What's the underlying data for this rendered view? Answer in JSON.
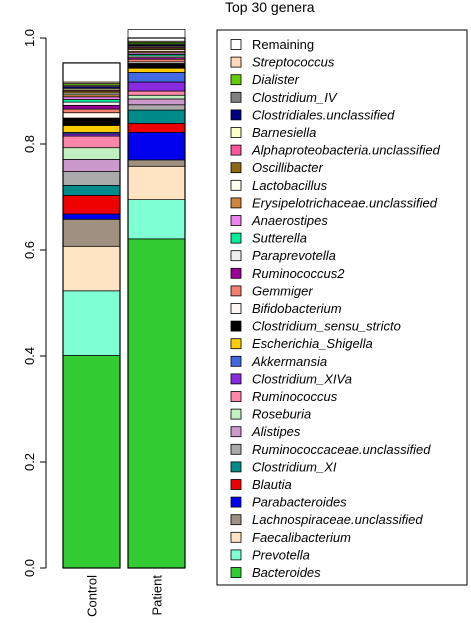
{
  "chart_data": {
    "type": "bar",
    "stacked": true,
    "title": "Top 30 genera",
    "xlabel": "",
    "ylabel": "",
    "ylim": [
      0,
      1
    ],
    "yticks": [
      "0.0",
      "0.2",
      "0.4",
      "0.6",
      "0.8",
      "1.0"
    ],
    "categories": [
      "Control",
      "Patient"
    ],
    "legend_position": "right",
    "grid": false,
    "series": [
      {
        "name": "Bacteroides",
        "color": "#33cc33",
        "values": [
          0.401,
          0.621
        ]
      },
      {
        "name": "Prevotella",
        "color": "#7fffd4",
        "values": [
          0.122,
          0.074
        ]
      },
      {
        "name": "Faecalibacterium",
        "color": "#ffe4c4",
        "values": [
          0.084,
          0.063
        ]
      },
      {
        "name": "Lachnospiraceae.unclassified",
        "color": "#a09080",
        "values": [
          0.051,
          0.012
        ]
      },
      {
        "name": "Parabacteroides",
        "color": "#0000ee",
        "values": [
          0.01,
          0.052
        ]
      },
      {
        "name": "Blautia",
        "color": "#ee0000",
        "values": [
          0.035,
          0.017
        ]
      },
      {
        "name": "Clostridium_XI",
        "color": "#008b8b",
        "values": [
          0.019,
          0.025
        ]
      },
      {
        "name": "Ruminococcaceae.unclassified",
        "color": "#aaaaaa",
        "values": [
          0.026,
          0.01
        ]
      },
      {
        "name": "Alistipes",
        "color": "#cc99cc",
        "values": [
          0.023,
          0.011
        ]
      },
      {
        "name": "Roseburia",
        "color": "#c1f0c1",
        "values": [
          0.022,
          0.007
        ]
      },
      {
        "name": "Ruminococcus",
        "color": "#ff88aa",
        "values": [
          0.022,
          0.008
        ]
      },
      {
        "name": "Clostridium_XIVa",
        "color": "#8a2be2",
        "values": [
          0.004,
          0.017
        ]
      },
      {
        "name": "Akkermansia",
        "color": "#4169e1",
        "values": [
          0.003,
          0.018
        ]
      },
      {
        "name": "Escherichia_Shigella",
        "color": "#ffcc00",
        "values": [
          0.013,
          0.008
        ]
      },
      {
        "name": "Clostridium_sensu_stricto",
        "color": "#000000",
        "values": [
          0.014,
          0.009
        ]
      },
      {
        "name": "Bifidobacterium",
        "color": "#fff8f0",
        "values": [
          0.01,
          0.003
        ]
      },
      {
        "name": "Gemmiger",
        "color": "#f08070",
        "values": [
          0.007,
          0.005
        ]
      },
      {
        "name": "Ruminococcus2",
        "color": "#990099",
        "values": [
          0.007,
          0.003
        ]
      },
      {
        "name": "Paraprevotella",
        "color": "#f0f0f0",
        "values": [
          0.006,
          0.003
        ]
      },
      {
        "name": "Sutterella",
        "color": "#00ee99",
        "values": [
          0.005,
          0.003
        ]
      },
      {
        "name": "Anaerostipes",
        "color": "#ee82ee",
        "values": [
          0.005,
          0.003
        ]
      },
      {
        "name": "Erysipelotrichaceae.unclassified",
        "color": "#cd853f",
        "values": [
          0.004,
          0.003
        ]
      },
      {
        "name": "Lactobacillus",
        "color": "#fffff0",
        "values": [
          0.003,
          0.003
        ]
      },
      {
        "name": "Oscillibacter",
        "color": "#8b6914",
        "values": [
          0.004,
          0.003
        ]
      },
      {
        "name": "Alphaproteobacteria.unclassified",
        "color": "#ff5599",
        "values": [
          0.002,
          0.002
        ]
      },
      {
        "name": "Barnesiella",
        "color": "#ffffcc",
        "values": [
          0.003,
          0.002
        ]
      },
      {
        "name": "Clostridiales.unclassified",
        "color": "#000080",
        "values": [
          0.003,
          0.002
        ]
      },
      {
        "name": "Clostridium_IV",
        "color": "#808080",
        "values": [
          0.003,
          0.002
        ]
      },
      {
        "name": "Dialister",
        "color": "#66cc00",
        "values": [
          0.003,
          0.003
        ]
      },
      {
        "name": "Streptococcus",
        "color": "#ffdab9",
        "values": [
          0.003,
          0.002
        ]
      },
      {
        "name": "Remaining",
        "color": "#ffffff",
        "values": [
          0.036,
          0.022
        ]
      }
    ]
  }
}
